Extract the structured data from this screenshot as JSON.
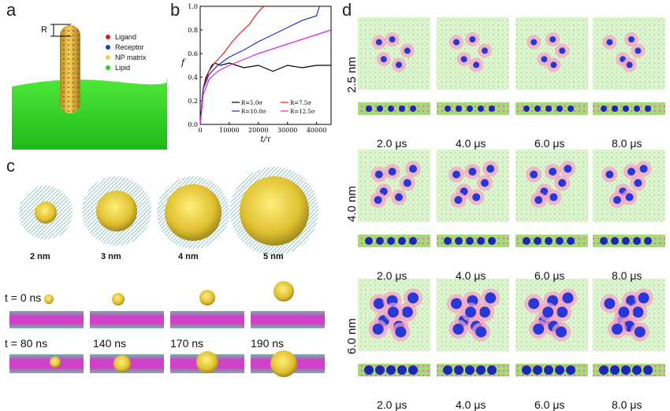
{
  "panels": {
    "a": {
      "label": "a",
      "radius_label": "R",
      "legend": [
        {
          "label": "Ligand",
          "color": "#d42020"
        },
        {
          "label": "Receptor",
          "color": "#2040c0"
        },
        {
          "label": "NP matrix",
          "color": "#f0d040"
        },
        {
          "label": "Lipid",
          "color": "#30d020"
        }
      ]
    },
    "b": {
      "label": "b"
    },
    "c": {
      "label": "c",
      "sizes": [
        "2 nm",
        "3 nm",
        "4 nm",
        "5 nm"
      ],
      "times_top": [
        "t = 0 ns"
      ],
      "times_bottom": [
        "t = 80 ns",
        "140 ns",
        "170 ns",
        "190 ns"
      ]
    },
    "d": {
      "label": "d",
      "rows": [
        {
          "size": "2.5 nm",
          "times": [
            "2.0 μs",
            "4.0 μs",
            "6.0 μs",
            "8.0 μs"
          ]
        },
        {
          "size": "4.0 nm",
          "times": [
            "2.0 μs",
            "4.0 μs",
            "6.0 μs",
            "8.0 μs"
          ]
        },
        {
          "size": "6.0 nm",
          "times": [
            "2.0 μs",
            "4.0 μs",
            "6.0 μs",
            "8.0 μs"
          ]
        }
      ]
    }
  },
  "chart_data": {
    "type": "line",
    "title": "",
    "xlabel": "t/τ",
    "ylabel": "f",
    "xlim": [
      0,
      45000
    ],
    "ylim": [
      0,
      1.0
    ],
    "x_ticks": [
      "0",
      "10000",
      "20000",
      "30000",
      "40000"
    ],
    "y_ticks": [
      "0.0",
      "0.2",
      "0.4",
      "0.6",
      "0.8",
      "1.0"
    ],
    "legend_position": "bottom-right",
    "series": [
      {
        "name": "R=5.0σ",
        "color": "#000000",
        "x": [
          0,
          1000,
          2000,
          3000,
          4000,
          5000,
          7000,
          10000,
          15000,
          20000,
          25000,
          30000,
          35000,
          40000,
          45000
        ],
        "y": [
          0.0,
          0.3,
          0.4,
          0.45,
          0.5,
          0.52,
          0.5,
          0.52,
          0.48,
          0.5,
          0.45,
          0.5,
          0.48,
          0.5,
          0.5
        ]
      },
      {
        "name": "R=7.5σ",
        "color": "#e02020",
        "x": [
          0,
          1000,
          3000,
          5000,
          8000,
          11000,
          14000,
          17000,
          19000,
          21000,
          22000
        ],
        "y": [
          0.0,
          0.3,
          0.45,
          0.52,
          0.6,
          0.7,
          0.78,
          0.85,
          0.92,
          0.98,
          1.0
        ]
      },
      {
        "name": "R=10.0σ",
        "color": "#2030d0",
        "x": [
          0,
          1000,
          3000,
          6000,
          10000,
          15000,
          20000,
          25000,
          30000,
          35000,
          40000,
          41000
        ],
        "y": [
          0.0,
          0.3,
          0.42,
          0.5,
          0.57,
          0.63,
          0.7,
          0.76,
          0.82,
          0.88,
          0.92,
          1.0
        ]
      },
      {
        "name": "R=12.5σ",
        "color": "#e020e0",
        "x": [
          0,
          1000,
          3000,
          6000,
          10000,
          15000,
          20000,
          25000,
          30000,
          35000,
          40000,
          45000
        ],
        "y": [
          0.0,
          0.25,
          0.38,
          0.45,
          0.5,
          0.55,
          0.6,
          0.64,
          0.68,
          0.72,
          0.76,
          0.8
        ]
      }
    ]
  }
}
